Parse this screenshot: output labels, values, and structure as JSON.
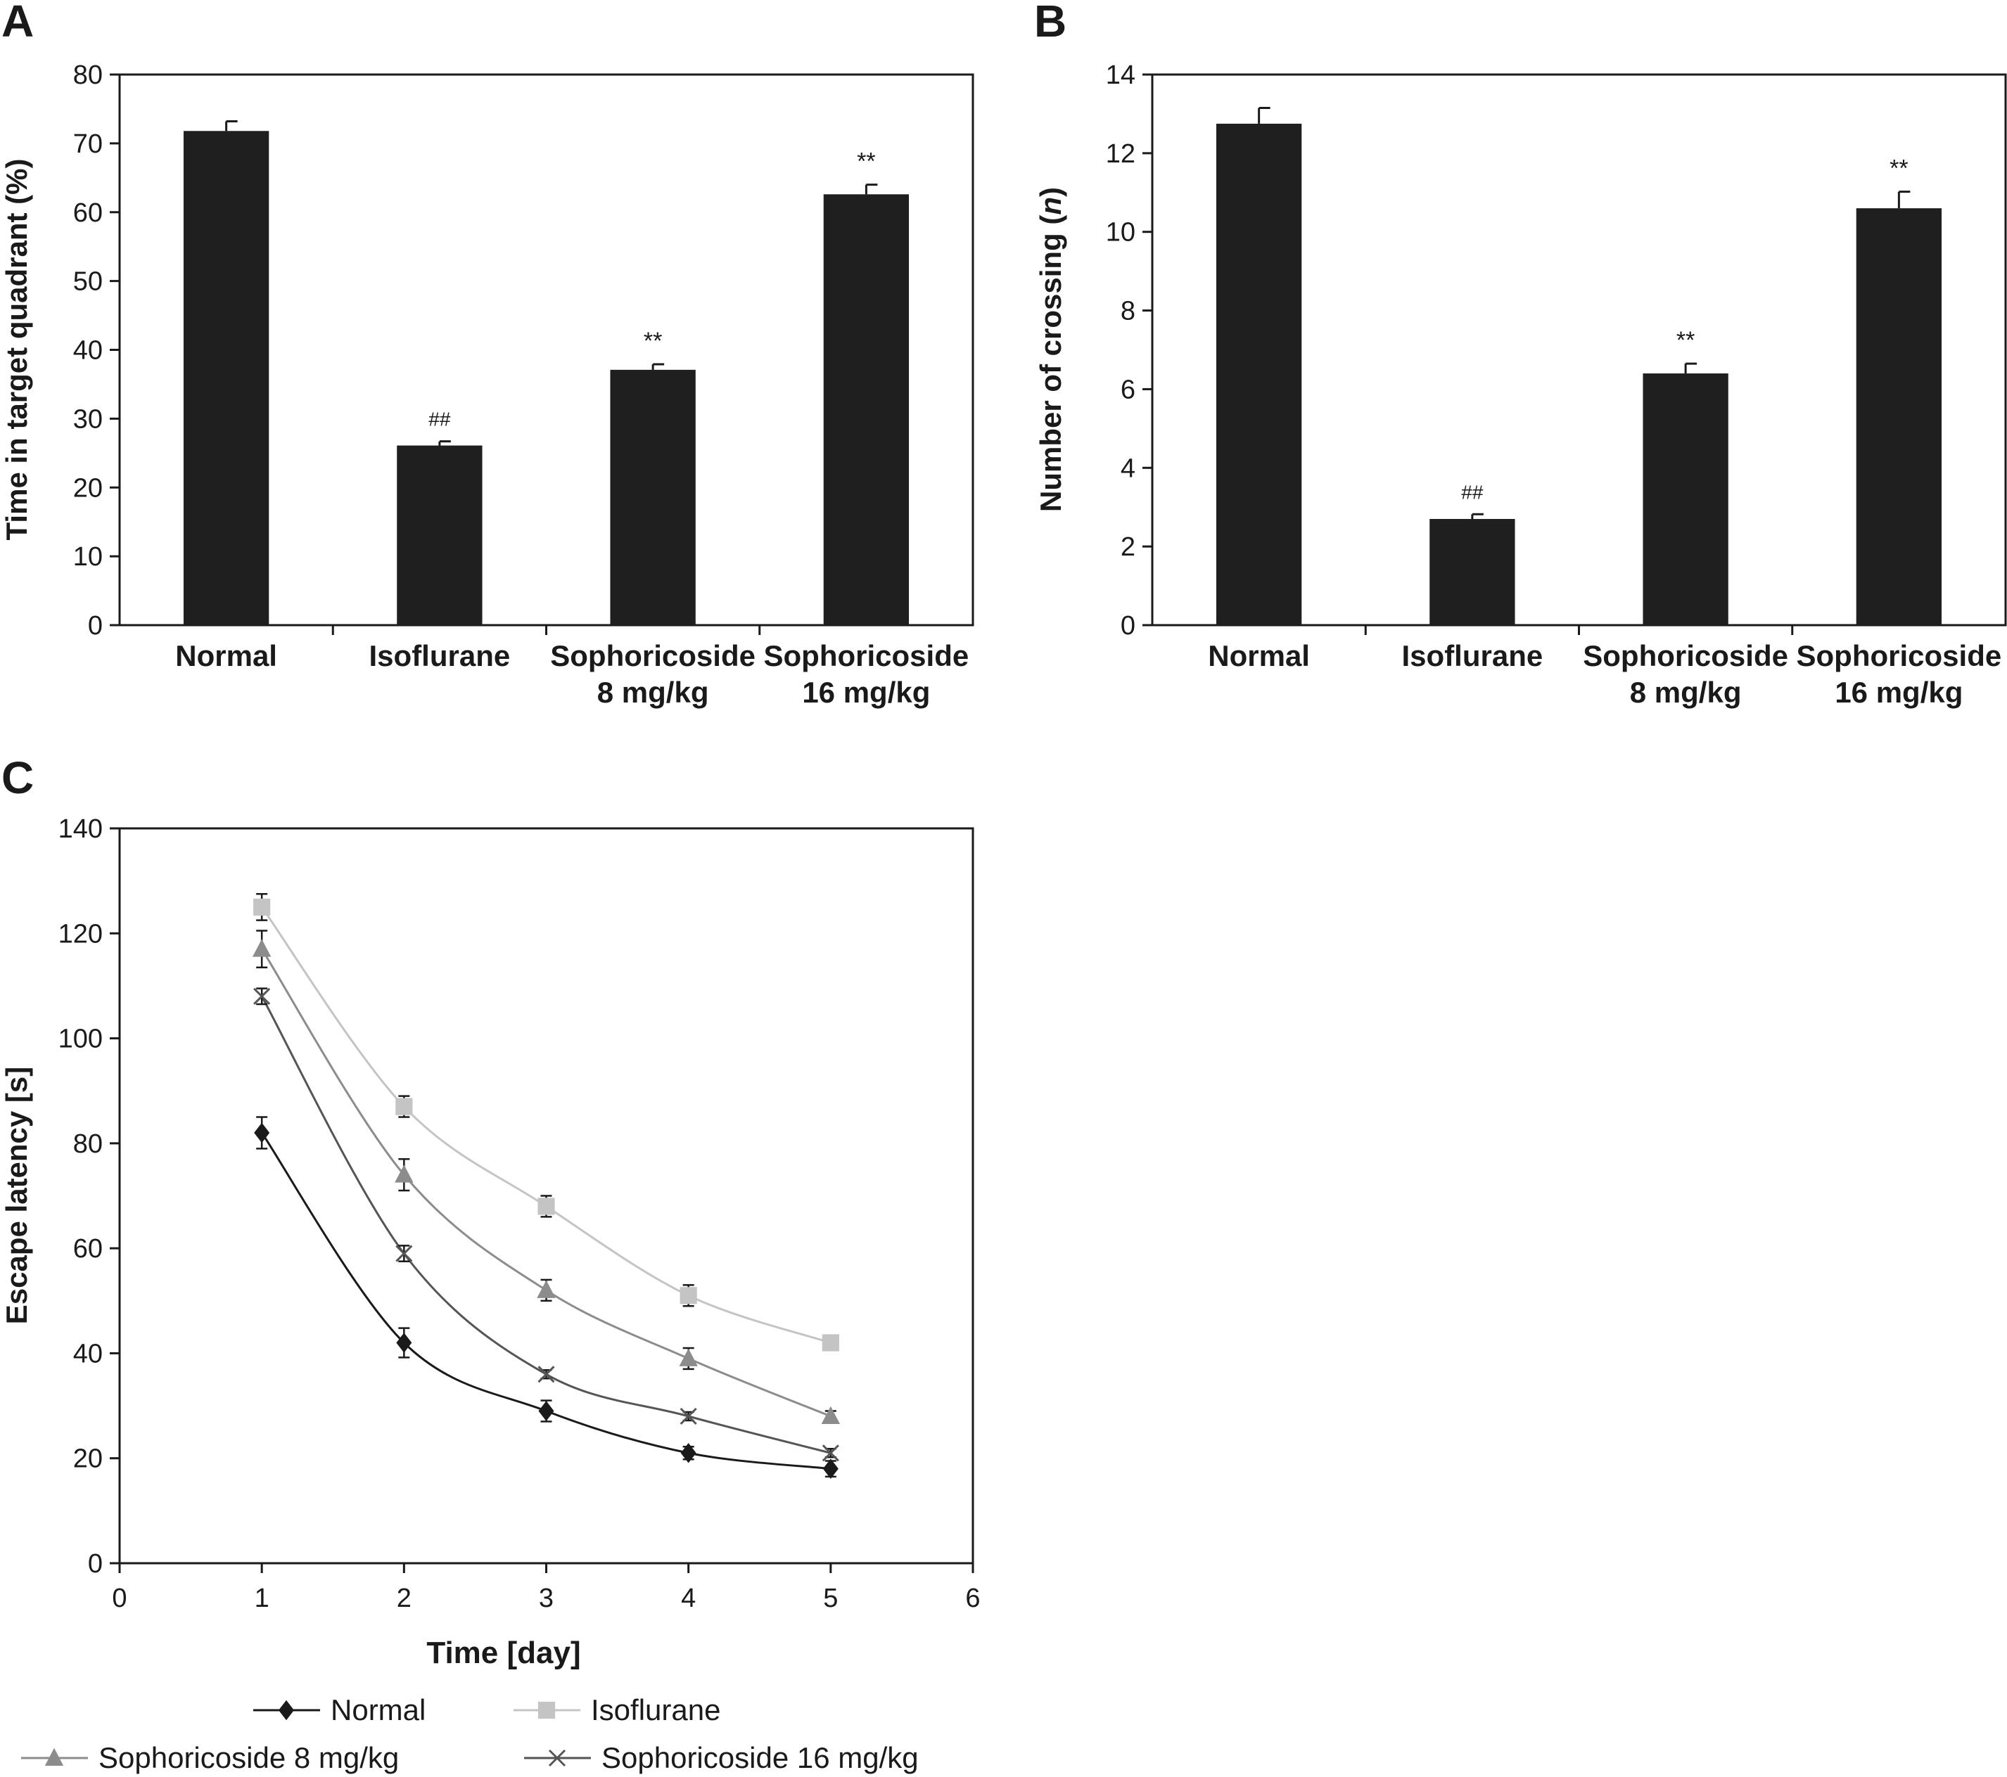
{
  "panels": {
    "A": "A",
    "B": "B",
    "C": "C"
  },
  "chart_data": [
    {
      "panel": "A",
      "type": "bar",
      "categories": [
        "Normal",
        "Isoflurane",
        "Sophoricoside",
        "Sophoricoside"
      ],
      "category_sub": [
        "",
        "",
        "8 mg/kg",
        "16 mg/kg"
      ],
      "values": [
        71.8,
        26.1,
        37.1,
        62.6
      ],
      "errors": [
        1.4,
        0.6,
        0.8,
        1.4
      ],
      "significance": [
        "",
        "##",
        "**",
        "**"
      ],
      "ylabel": "Time in target quadrant (%)",
      "ylim": [
        0,
        80
      ],
      "yticks": [
        0,
        10,
        20,
        30,
        40,
        50,
        60,
        70,
        80
      ],
      "bar_color": "#1f1f1f"
    },
    {
      "panel": "B",
      "type": "bar",
      "categories": [
        "Normal",
        "Isoflurane",
        "Sophoricoside",
        "Sophoricoside"
      ],
      "category_sub": [
        "",
        "",
        "8 mg/kg",
        "16 mg/kg"
      ],
      "values": [
        12.75,
        2.7,
        6.4,
        10.6
      ],
      "errors": [
        0.4,
        0.12,
        0.25,
        0.42
      ],
      "significance": [
        "",
        "##",
        "**",
        "**"
      ],
      "ylabel_prefix": "Number of crossing (",
      "ylabel_italic": "n",
      "ylabel_suffix": ")",
      "ylim": [
        0,
        14
      ],
      "yticks": [
        0,
        2,
        4,
        6,
        8,
        10,
        12,
        14
      ],
      "bar_color": "#1f1f1f"
    },
    {
      "panel": "C",
      "type": "line",
      "xlabel": "Time [day]",
      "ylabel": "Escape latency [s]",
      "xlim": [
        0,
        6
      ],
      "ylim": [
        0,
        140
      ],
      "xticks": [
        0,
        1,
        2,
        3,
        4,
        5,
        6
      ],
      "yticks": [
        0,
        20,
        40,
        60,
        80,
        100,
        120,
        140
      ],
      "x": [
        1,
        2,
        3,
        4,
        5
      ],
      "legend_position": "bottom",
      "series": [
        {
          "name": "Normal",
          "marker": "diamond",
          "color": "#1a1a1a",
          "values": [
            82,
            42,
            29,
            21,
            18
          ],
          "errors": [
            3,
            2.8,
            2,
            1.2,
            1.5
          ]
        },
        {
          "name": "Isoflurane",
          "marker": "square",
          "color": "#c4c4c4",
          "values": [
            125,
            87,
            68,
            51,
            42
          ],
          "errors": [
            2.5,
            2,
            2,
            2,
            0.5
          ]
        },
        {
          "name": "Sophoricoside 8 mg/kg",
          "marker": "triangle",
          "color": "#8c8c8c",
          "values": [
            117,
            74,
            52,
            39,
            28
          ],
          "errors": [
            3.5,
            3,
            2,
            2,
            1
          ]
        },
        {
          "name": "Sophoricoside 16 mg/kg",
          "marker": "x",
          "color": "#555555",
          "values": [
            108,
            59,
            36,
            28,
            21
          ],
          "errors": [
            1.5,
            1.5,
            0.8,
            0.8,
            0.8
          ]
        }
      ]
    }
  ]
}
